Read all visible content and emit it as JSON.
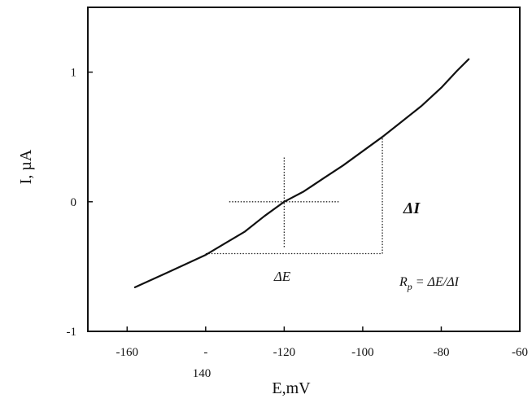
{
  "chart_data": {
    "type": "line",
    "xlabel": "E,mV",
    "ylabel": "I, µA",
    "xlim": [
      -170,
      -60
    ],
    "ylim": [
      -1,
      1.5
    ],
    "x_ticks": [
      -160,
      -140,
      -120,
      -100,
      -80,
      -60
    ],
    "x_tick_labels": [
      "-160",
      "-",
      "-120",
      "-100",
      "-80",
      "-60"
    ],
    "x_tick_extra_label": "140",
    "y_ticks": [
      -1,
      0,
      1
    ],
    "y_tick_labels": [
      "-1",
      "0",
      "1"
    ],
    "series": [
      {
        "x": [
          -158,
          -150,
          -145,
          -140,
          -135,
          -130,
          -125,
          -120,
          -115,
          -110,
          -105,
          -100,
          -95,
          -90,
          -85,
          -80,
          -76,
          -73
        ],
        "y": [
          -0.66,
          -0.55,
          -0.48,
          -0.41,
          -0.32,
          -0.23,
          -0.11,
          0.0,
          0.08,
          0.18,
          0.28,
          0.39,
          0.5,
          0.62,
          0.74,
          0.88,
          1.01,
          1.1
        ]
      }
    ],
    "annotations": {
      "delta_e": "ΔE",
      "delta_i": "ΔI",
      "formula": "Rp = ΔE/ΔI",
      "formula_prefix": "R",
      "formula_sub": "p",
      "formula_rest": " = ΔE/ΔI"
    },
    "guides": {
      "cross_center": [
        -120,
        0
      ],
      "cross_h": [
        -134,
        -106
      ],
      "cross_v": [
        -0.35,
        0.35
      ],
      "rect_x": [
        -140,
        -95
      ],
      "rect_y": [
        -0.4,
        0.5
      ]
    },
    "grid": false,
    "legend": "none"
  }
}
